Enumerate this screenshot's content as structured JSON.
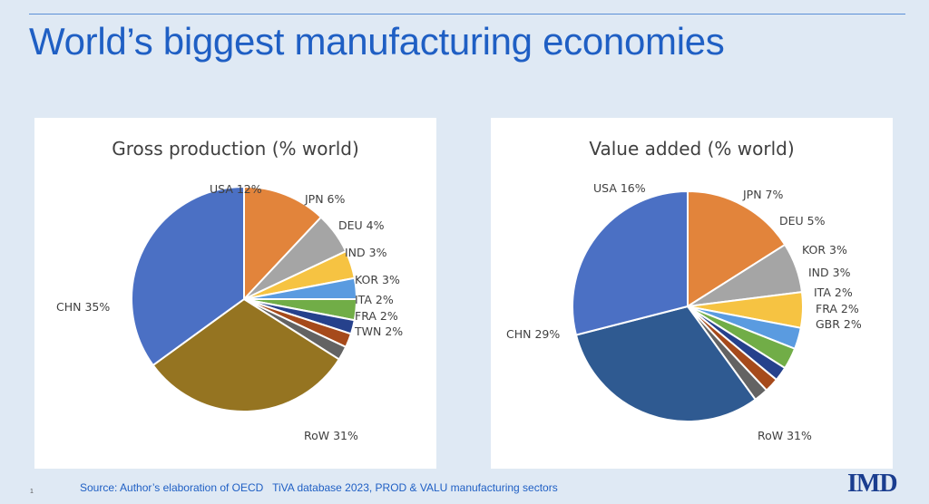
{
  "slide": {
    "title": "World’s biggest manufacturing economies",
    "source": "Source: Author’s elaboration of OECD   TiVA database 2023, PROD & VALU manufacturing sectors",
    "page_number": "1",
    "logo": "IMD"
  },
  "colors": {
    "title_blue": "#1f5fc4",
    "background": "#dfe9f4"
  },
  "chart_data": [
    {
      "type": "pie",
      "title": "Gross production  (% world)",
      "slices": [
        {
          "label": "USA 12%",
          "name": "USA",
          "value": 12,
          "color": "#e2843b"
        },
        {
          "label": "JPN 6%",
          "name": "JPN",
          "value": 6,
          "color": "#a5a5a5"
        },
        {
          "label": "DEU 4%",
          "name": "DEU",
          "value": 4,
          "color": "#f6c342"
        },
        {
          "label": "IND 3%",
          "name": "IND",
          "value": 3,
          "color": "#5a9be0"
        },
        {
          "label": "KOR 3%",
          "name": "KOR",
          "value": 3,
          "color": "#71ad47"
        },
        {
          "label": "ITA 2%",
          "name": "ITA",
          "value": 2,
          "color": "#26418c"
        },
        {
          "label": "FRA 2%",
          "name": "FRA",
          "value": 2,
          "color": "#a64a1b"
        },
        {
          "label": "TWN 2%",
          "name": "TWN",
          "value": 2,
          "color": "#636363"
        },
        {
          "label": "RoW 31%",
          "name": "RoW",
          "value": 31,
          "color": "#957421"
        },
        {
          "label": "CHN 35%",
          "name": "CHN",
          "value": 35,
          "color": "#4b70c4"
        }
      ]
    },
    {
      "type": "pie",
      "title": "Value added (% world)",
      "slices": [
        {
          "label": "USA 16%",
          "name": "USA",
          "value": 16,
          "color": "#e2843b"
        },
        {
          "label": "JPN 7%",
          "name": "JPN",
          "value": 7,
          "color": "#a5a5a5"
        },
        {
          "label": "DEU 5%",
          "name": "DEU",
          "value": 5,
          "color": "#f6c342"
        },
        {
          "label": "KOR 3%",
          "name": "KOR",
          "value": 3,
          "color": "#5a9be0"
        },
        {
          "label": "IND 3%",
          "name": "IND",
          "value": 3,
          "color": "#71ad47"
        },
        {
          "label": "ITA 2%",
          "name": "ITA",
          "value": 2,
          "color": "#26418c"
        },
        {
          "label": "FRA 2%",
          "name": "FRA",
          "value": 2,
          "color": "#a64a1b"
        },
        {
          "label": "GBR 2%",
          "name": "GBR",
          "value": 2,
          "color": "#636363"
        },
        {
          "label": "RoW 31%",
          "name": "RoW",
          "value": 31,
          "color": "#2f5a91"
        },
        {
          "label": "CHN 29%",
          "name": "CHN",
          "value": 29,
          "color": "#4b70c4"
        }
      ]
    }
  ]
}
